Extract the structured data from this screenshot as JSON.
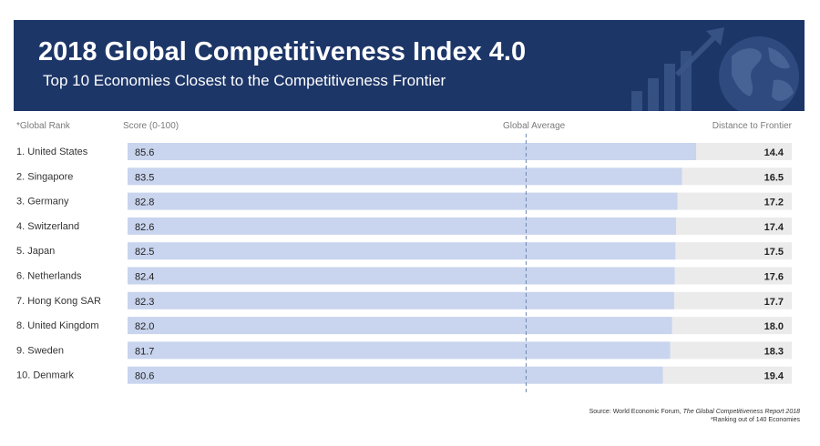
{
  "banner": {
    "title": "2018 Global Competitiveness Index 4.0",
    "subtitle": "Top 10 Economies Closest to the Competitiveness Frontier",
    "background_color": "#1d3668"
  },
  "headers": {
    "rank": "*Global Rank",
    "score": "Score (0-100)",
    "average": "Global Average",
    "distance": "Distance to Frontier"
  },
  "chart_data": {
    "type": "bar",
    "title": "2018 Global Competitiveness Index 4.0",
    "subtitle": "Top 10 Economies Closest to the Competitiveness Frontier",
    "orientation": "horizontal",
    "stacked": true,
    "xlim": [
      0,
      100
    ],
    "global_average": 60,
    "categories": [
      "1. United States",
      "2. Singapore",
      "3. Germany",
      "4. Switzerland",
      "5. Japan",
      "6. Netherlands",
      "7. Hong Kong SAR",
      "8. United Kingdom",
      "9. Sweden",
      "10. Denmark"
    ],
    "series": [
      {
        "name": "Score (0-100)",
        "color": "#c9d4ee",
        "values": [
          85.6,
          83.5,
          82.8,
          82.6,
          82.5,
          82.4,
          82.3,
          82.0,
          81.7,
          80.6
        ],
        "labels": [
          "85.6",
          "83.5",
          "82.8",
          "82.6",
          "82.5",
          "82.4",
          "82.3",
          "82.0",
          "81.7",
          "80.6"
        ]
      },
      {
        "name": "Distance to Frontier",
        "color": "#ebebeb",
        "values": [
          14.4,
          16.5,
          17.2,
          17.4,
          17.5,
          17.6,
          17.7,
          18.0,
          18.3,
          19.4
        ],
        "labels": [
          "14.4",
          "16.5",
          "17.2",
          "17.4",
          "17.5",
          "17.6",
          "17.7",
          "18.0",
          "18.3",
          "19.4"
        ]
      }
    ]
  },
  "footer": {
    "source_prefix": "Source: World Economic Forum, ",
    "source_title": "The Global Competitiveness Report 2018",
    "note": "*Ranking out of 140 Economies"
  }
}
